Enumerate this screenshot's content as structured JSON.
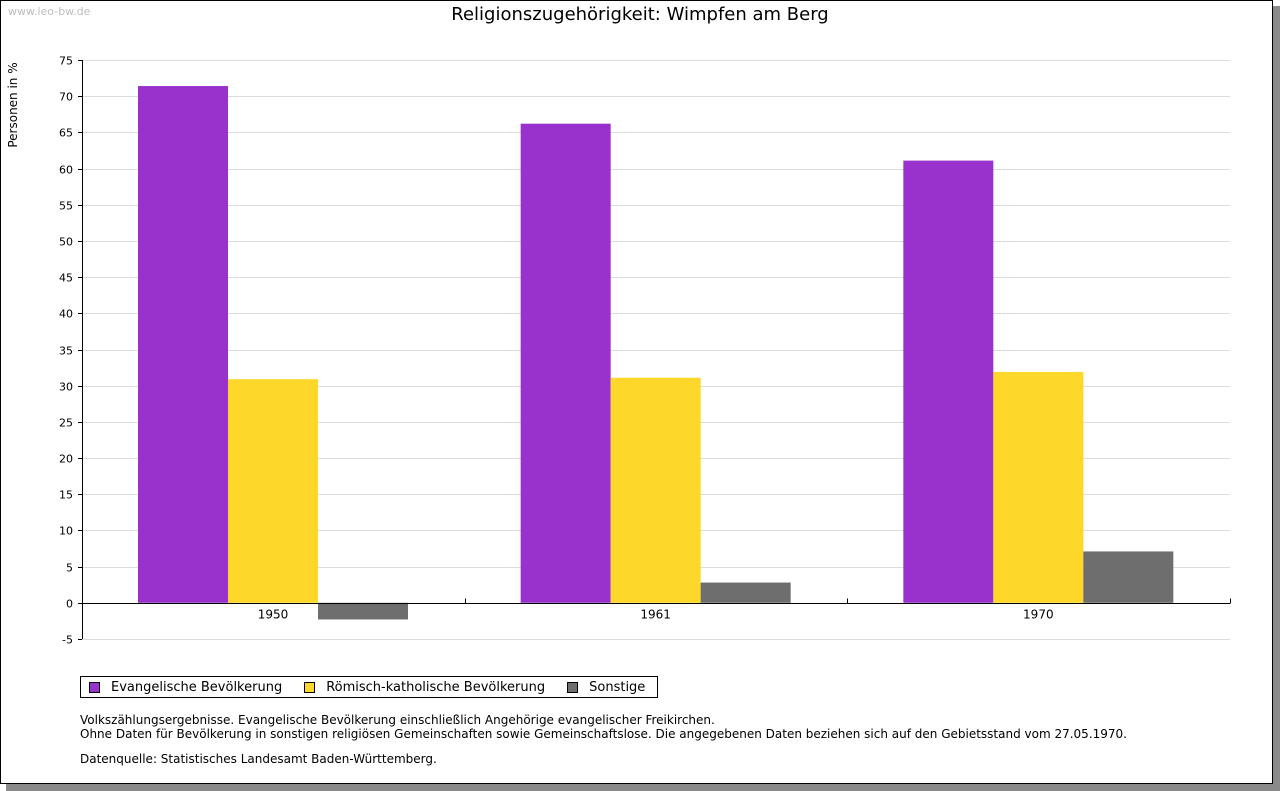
{
  "watermark": "www.leo-bw.de",
  "chart_data": {
    "type": "bar",
    "title": "Religionszugehörigkeit: Wimpfen am Berg",
    "xlabel": "",
    "ylabel": "Personen in %",
    "categories": [
      "1950",
      "1961",
      "1970"
    ],
    "ylim": [
      -5,
      75
    ],
    "yticks": [
      "75",
      "70",
      "65",
      "60",
      "55",
      "50",
      "45",
      "40",
      "35",
      "30",
      "25",
      "20",
      "15",
      "10",
      "5",
      "0",
      "-5"
    ],
    "grid": true,
    "series": [
      {
        "name": "Evangelische Bevölkerung",
        "color": "#9932cc",
        "values": [
          71.4,
          66.2,
          61.1
        ]
      },
      {
        "name": "Römisch-katholische Bevölkerung",
        "color": "#fdd72a",
        "values": [
          30.9,
          31.1,
          31.9
        ]
      },
      {
        "name": "Sonstige",
        "color": "#6e6e6e",
        "values": [
          -2.3,
          2.8,
          7.1
        ]
      }
    ],
    "legend_position": "bottom-left"
  },
  "notes": {
    "line1": "Volkszählungsergebnisse. Evangelische Bevölkerung einschließlich Angehörige evangelischer Freikirchen.",
    "line2": "Ohne Daten für Bevölkerung in sonstigen religiösen Gemeinschaften sowie Gemeinschaftslose. Die angegebenen Daten beziehen sich auf den Gebietsstand vom 27.05.1970.",
    "source": "Datenquelle: Statistisches Landesamt Baden-Württemberg."
  }
}
